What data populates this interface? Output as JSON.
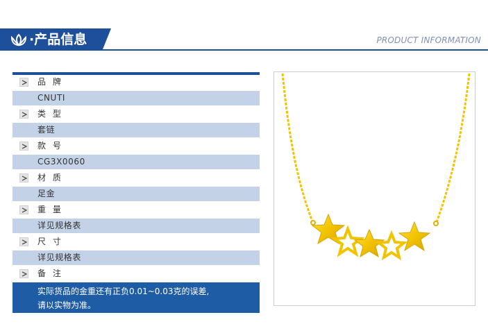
{
  "header": {
    "title": "·产品信息",
    "english": "PRODUCT INFORMATION",
    "icon": "lotus-logo-icon"
  },
  "info": {
    "rows": [
      {
        "label": "品 牌",
        "value": "CNUTI"
      },
      {
        "label": "类 型",
        "value": "套链"
      },
      {
        "label": "款 号",
        "value": "CG3X0060"
      },
      {
        "label": "材 质",
        "value": "足金"
      },
      {
        "label": "重 量",
        "value": "详见规格表"
      },
      {
        "label": "尺 寸",
        "value": "详见规格表"
      }
    ],
    "note_label": "备 注",
    "note_lines": [
      "实际货品的金重还有正负0.01~0.03克的误差,",
      "请以实物为准。"
    ]
  },
  "colors": {
    "brand_blue": "#1e4f9b",
    "row_blue": "#c3d2e7",
    "note_blue": "#1e5da6",
    "gold": "#f2c400"
  },
  "image": {
    "subject": "gold-star-necklace"
  }
}
